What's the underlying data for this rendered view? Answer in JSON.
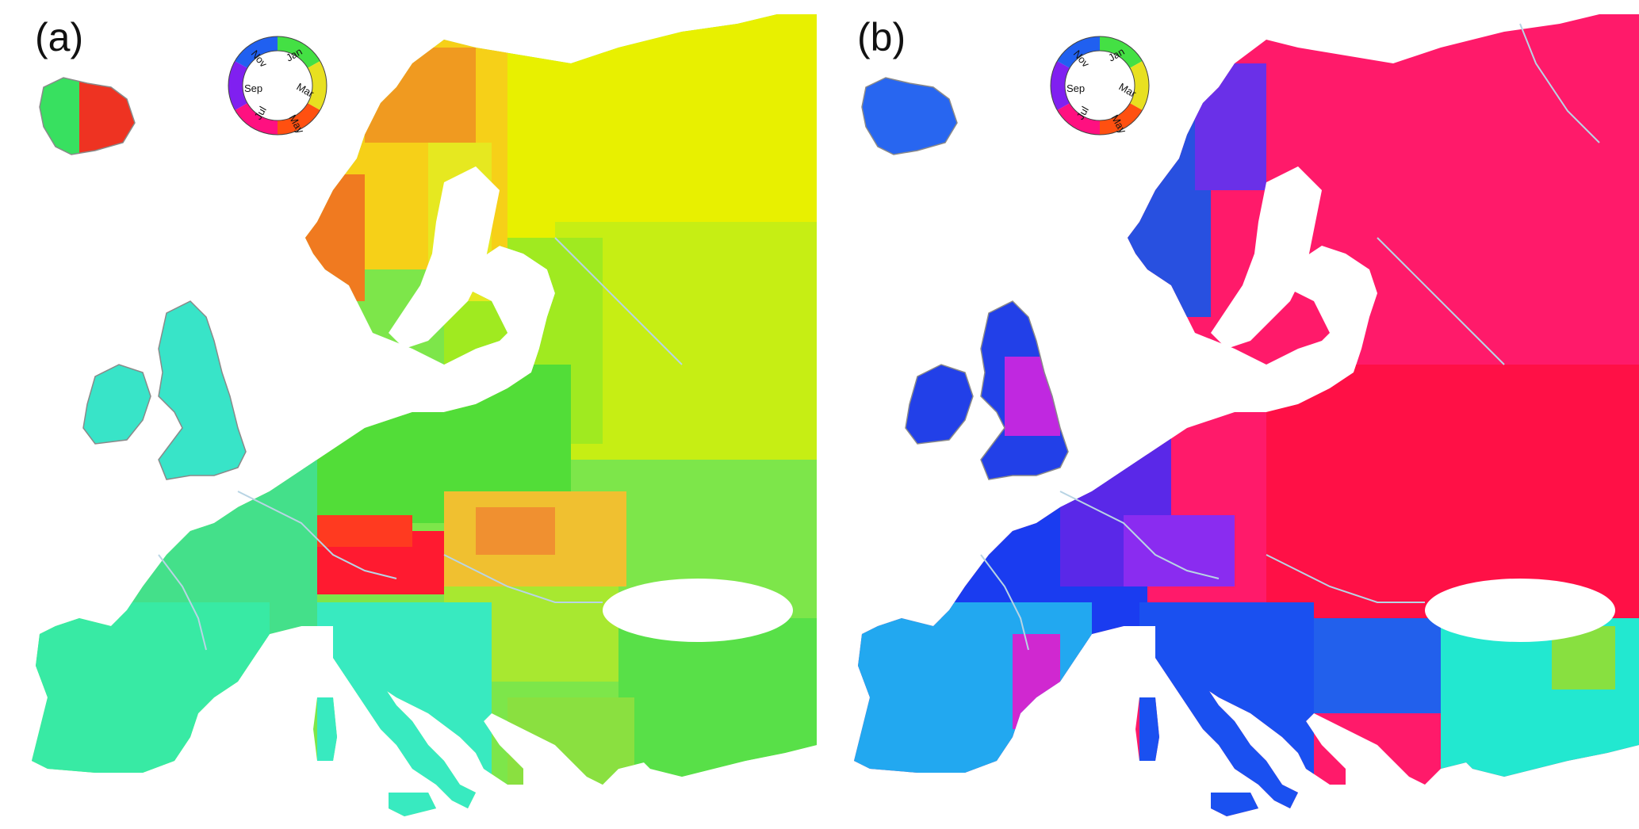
{
  "panels": [
    {
      "label": "(a)",
      "color_wheel": {
        "months": [
          "Jan",
          "Mar",
          "May",
          "Jul",
          "Sep",
          "Nov"
        ]
      },
      "dominant_colors": {
        "iberia": "#33ee99",
        "france": "#44e08a",
        "alps": "#ff1133",
        "carpathians": "#f0c030",
        "scandinavia_mountains": "#f08020",
        "northern_russia": "#e8f000",
        "central_russia": "#b6ec18",
        "central_europe": "#44dd33",
        "british_isles": "#33e0c8",
        "iceland": "#ee3322"
      }
    },
    {
      "label": "(b)",
      "color_wheel": {
        "months": [
          "Jan",
          "Mar",
          "May",
          "Jul",
          "Sep",
          "Nov"
        ]
      },
      "dominant_colors": {
        "iberia": "#22a8f0",
        "france": "#1a3cf0",
        "alps": "#8a2cf0",
        "eastern_europe": "#ff1046",
        "northern_russia": "#ff1a6a",
        "norway_coast": "#2850e0",
        "british_isles": "#2240e8",
        "turkey": "#22e8d0",
        "iceland": "#2866f0"
      }
    }
  ]
}
